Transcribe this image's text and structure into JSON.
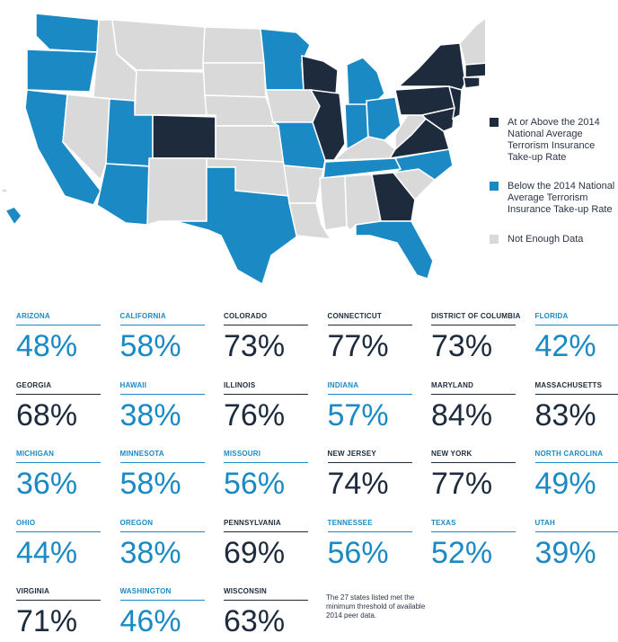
{
  "legend": [
    {
      "label": "At or Above the 2014 National Average Terrorism Insurance Take-up Rate",
      "color": "#1d2b3d"
    },
    {
      "label": "Below the 2014 National Average Terrorism Insurance Take-up Rate",
      "color": "#1b8ac4"
    },
    {
      "label": "Not Enough Data",
      "color": "#d9d9da"
    }
  ],
  "states": [
    {
      "name": "ARIZONA",
      "value": 48,
      "value_label": "48%",
      "color": "#1b8ac4"
    },
    {
      "name": "CALIFORNIA",
      "value": 58,
      "value_label": "58%",
      "color": "#1b8ac4"
    },
    {
      "name": "COLORADO",
      "value": 73,
      "value_label": "73%",
      "color": "#1d2b3d"
    },
    {
      "name": "CONNECTICUT",
      "value": 77,
      "value_label": "77%",
      "color": "#1d2b3d"
    },
    {
      "name": "DISTRICT OF COLUMBIA",
      "value": 73,
      "value_label": "73%",
      "color": "#1d2b3d"
    },
    {
      "name": "FLORIDA",
      "value": 42,
      "value_label": "42%",
      "color": "#1b8ac4"
    },
    {
      "name": "GEORGIA",
      "value": 68,
      "value_label": "68%",
      "color": "#1d2b3d"
    },
    {
      "name": "HAWAII",
      "value": 38,
      "value_label": "38%",
      "color": "#1b8ac4"
    },
    {
      "name": "ILLINOIS",
      "value": 76,
      "value_label": "76%",
      "color": "#1d2b3d"
    },
    {
      "name": "INDIANA",
      "value": 57,
      "value_label": "57%",
      "color": "#1b8ac4"
    },
    {
      "name": "MARYLAND",
      "value": 84,
      "value_label": "84%",
      "color": "#1d2b3d"
    },
    {
      "name": "MASSACHUSETTS",
      "value": 83,
      "value_label": "83%",
      "color": "#1d2b3d"
    },
    {
      "name": "MICHIGAN",
      "value": 36,
      "value_label": "36%",
      "color": "#1b8ac4"
    },
    {
      "name": "MINNESOTA",
      "value": 58,
      "value_label": "58%",
      "color": "#1b8ac4"
    },
    {
      "name": "MISSOURI",
      "value": 56,
      "value_label": "56%",
      "color": "#1b8ac4"
    },
    {
      "name": "NEW JERSEY",
      "value": 74,
      "value_label": "74%",
      "color": "#1d2b3d"
    },
    {
      "name": "NEW YORK",
      "value": 77,
      "value_label": "77%",
      "color": "#1d2b3d"
    },
    {
      "name": "NORTH CAROLINA",
      "value": 49,
      "value_label": "49%",
      "color": "#1b8ac4"
    },
    {
      "name": "OHIO",
      "value": 44,
      "value_label": "44%",
      "color": "#1b8ac4"
    },
    {
      "name": "OREGON",
      "value": 38,
      "value_label": "38%",
      "color": "#1b8ac4"
    },
    {
      "name": "PENNSYLVANIA",
      "value": 69,
      "value_label": "69%",
      "color": "#1d2b3d"
    },
    {
      "name": "TENNESSEE",
      "value": 56,
      "value_label": "56%",
      "color": "#1b8ac4"
    },
    {
      "name": "TEXAS",
      "value": 52,
      "value_label": "52%",
      "color": "#1b8ac4"
    },
    {
      "name": "UTAH",
      "value": 39,
      "value_label": "39%",
      "color": "#1b8ac4"
    },
    {
      "name": "VIRGINIA",
      "value": 71,
      "value_label": "71%",
      "color": "#1d2b3d"
    },
    {
      "name": "WASHINGTON",
      "value": 46,
      "value_label": "46%",
      "color": "#1b8ac4"
    },
    {
      "name": "WISCONSIN",
      "value": 63,
      "value_label": "63%",
      "color": "#1d2b3d"
    }
  ],
  "note": "The 27 states listed met the minimum threshold of available 2014 peer data."
}
